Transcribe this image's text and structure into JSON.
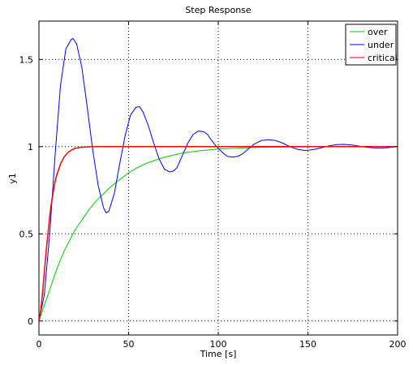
{
  "chart_data": {
    "type": "line",
    "title": "Step Response",
    "xlabel": "Time [s]",
    "ylabel": "y1",
    "xlim": [
      0,
      200
    ],
    "ylim": [
      -0.08,
      1.72
    ],
    "x_ticks": [
      0,
      50,
      100,
      150,
      200
    ],
    "y_ticks": [
      0,
      0.5,
      1,
      1.5
    ],
    "x_tick_labels": [
      "0",
      "50",
      "100",
      "150",
      "200"
    ],
    "y_tick_labels": [
      "0",
      "0.5",
      "1",
      "1.5"
    ],
    "grid": true,
    "legend_position": "top-right",
    "series": [
      {
        "name": "over",
        "color": "#00cc00",
        "x": [
          0,
          2,
          4,
          6,
          8,
          10,
          12,
          14,
          16,
          18,
          20,
          24,
          28,
          32,
          36,
          40,
          45,
          50,
          55,
          60,
          70,
          80,
          90,
          100,
          110,
          120,
          130,
          140,
          150,
          160,
          170,
          180,
          190,
          200
        ],
        "y": [
          0,
          0.06,
          0.12,
          0.18,
          0.24,
          0.3,
          0.35,
          0.4,
          0.44,
          0.48,
          0.52,
          0.58,
          0.64,
          0.69,
          0.73,
          0.77,
          0.81,
          0.85,
          0.88,
          0.905,
          0.94,
          0.963,
          0.977,
          0.986,
          0.991,
          0.995,
          0.997,
          0.998,
          0.999,
          1.0,
          1.0,
          1.0,
          1.0,
          1.0
        ]
      },
      {
        "name": "under",
        "color": "#0000ff",
        "x": [
          0,
          3,
          6,
          9,
          12,
          15,
          18,
          19,
          21,
          24,
          27,
          30,
          33,
          36,
          37.5,
          39,
          42,
          45,
          48,
          51,
          54,
          56,
          58,
          61,
          64,
          67,
          70,
          73,
          75,
          77,
          80,
          83,
          86,
          89,
          92,
          94,
          96,
          99,
          102,
          105,
          108,
          111,
          113,
          116,
          120,
          124,
          128,
          132,
          136,
          140,
          144,
          148,
          150,
          154,
          158,
          162,
          166,
          170,
          174,
          178,
          182,
          186,
          190,
          194,
          198,
          200
        ],
        "y": [
          0,
          0.15,
          0.5,
          0.95,
          1.35,
          1.56,
          1.615,
          1.62,
          1.59,
          1.45,
          1.22,
          0.98,
          0.78,
          0.65,
          0.62,
          0.63,
          0.73,
          0.9,
          1.06,
          1.18,
          1.225,
          1.23,
          1.2,
          1.12,
          1.02,
          0.93,
          0.87,
          0.855,
          0.86,
          0.88,
          0.95,
          1.02,
          1.07,
          1.09,
          1.085,
          1.07,
          1.04,
          1.0,
          0.97,
          0.945,
          0.94,
          0.945,
          0.955,
          0.98,
          1.015,
          1.035,
          1.04,
          1.035,
          1.02,
          1.0,
          0.985,
          0.978,
          0.979,
          0.985,
          0.995,
          1.005,
          1.012,
          1.013,
          1.01,
          1.004,
          0.998,
          0.993,
          0.992,
          0.994,
          0.998,
          1.0
        ]
      },
      {
        "name": "critical",
        "color": "#ff0000",
        "x": [
          0,
          1,
          2,
          3,
          4,
          5,
          6,
          7,
          8,
          9,
          10,
          12,
          14,
          16,
          18,
          20,
          22,
          24,
          26,
          28,
          30,
          35,
          40,
          50,
          60,
          80,
          100,
          120,
          140,
          160,
          180,
          200
        ],
        "y": [
          0,
          0.06,
          0.16,
          0.28,
          0.4,
          0.5,
          0.6,
          0.68,
          0.74,
          0.8,
          0.84,
          0.9,
          0.94,
          0.965,
          0.98,
          0.99,
          0.994,
          0.997,
          0.998,
          0.999,
          1.0,
          1.0,
          1.0,
          1.0,
          1.0,
          1.0,
          1.0,
          1.0,
          1.0,
          1.0,
          1.0,
          1.0
        ]
      }
    ]
  }
}
